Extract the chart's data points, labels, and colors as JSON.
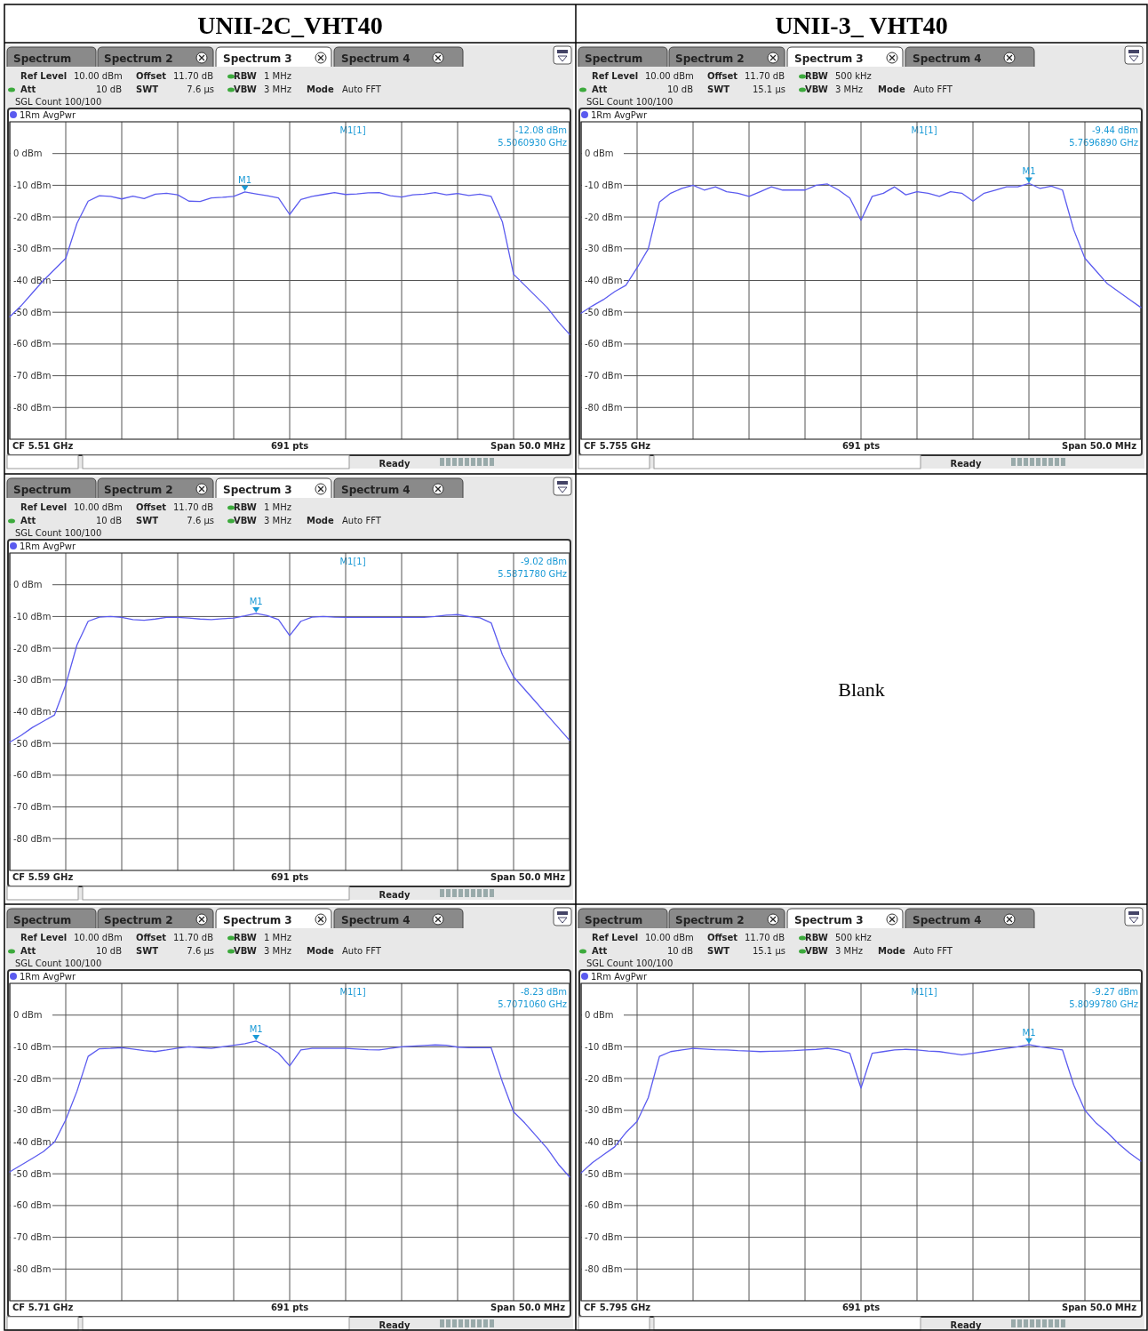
{
  "chart_data": [
    {
      "type": "line",
      "title": "UNII-2C_VHT40",
      "categories": [
        null,
        null,
        null,
        null,
        null,
        null,
        null,
        null,
        null,
        null,
        null,
        null,
        null,
        null,
        null,
        null,
        null,
        null,
        null,
        null,
        null,
        null,
        null,
        null,
        null,
        null,
        null,
        null,
        null,
        null,
        null,
        null,
        null,
        null,
        null,
        null,
        null,
        null,
        null,
        null,
        null,
        null,
        null,
        null,
        null,
        null,
        null,
        null,
        null,
        null,
        null
      ],
      "ylim": [
        -90,
        10
      ],
      "yticks": [
        {
          "value": 0,
          "label": "0 dBm"
        },
        {
          "value": -10,
          "label": "-10 dBm"
        },
        {
          "value": -20,
          "label": "-20 dBm"
        },
        {
          "value": -30,
          "label": "-30 dBm"
        },
        {
          "value": -40,
          "label": "-40 dBm"
        },
        {
          "value": -50,
          "label": "-50 dBm"
        },
        {
          "value": -60,
          "label": "-60 dBm"
        },
        {
          "value": -70,
          "label": "-70 dBm"
        },
        {
          "value": -80,
          "label": "-80 dBm"
        }
      ],
      "grid": true,
      "tick_labels": "y",
      "legend": "top left",
      "series": [
        {
          "name": "1Rm AvgPwr",
          "color": "#5b5bef",
          "values": [
            -51.4,
            -48,
            -44,
            -40,
            -36.5,
            -33,
            -22,
            -15,
            -13.3,
            -13.5,
            -14.3,
            -13.4,
            -14.2,
            -12.8,
            -12.5,
            -13,
            -15,
            -15.1,
            -14,
            -13.8,
            -13.5,
            -12.1,
            -12.7,
            -13.3,
            -14,
            -19.2,
            -14.5,
            -13.5,
            -12.9,
            -12.3,
            -12.9,
            -12.7,
            -12.4,
            -12.3,
            -13.3,
            -13.7,
            -13,
            -12.8,
            -12.3,
            -13,
            -12.6,
            -13.2,
            -12.8,
            -13.5,
            -21.5,
            -38,
            -41.5,
            -45,
            -48.5,
            -53,
            -57
          ]
        }
      ],
      "annotations": [
        "Spectrum",
        "Spectrum 2",
        "Spectrum 3",
        "Spectrum 4",
        "Ref Level",
        "10.00 dBm",
        "Offset",
        "11.70 dB",
        "RBW",
        "1 MHz",
        "Att",
        "10 dB",
        "SWT",
        "7.6 µs",
        "VBW",
        "3 MHz",
        "Mode",
        "Auto FFT",
        "SGL Count 100/100",
        "M1[1]",
        "-12.08 dBm",
        "5.5060930 GHz",
        "CF 5.51 GHz",
        "691 pts",
        "Span 50.0 MHz",
        "Ready",
        {
          "text": "M1",
          "y": -12.08
        }
      ]
    },
    {
      "type": "line",
      "title": "UNII-3_ VHT40",
      "categories": [
        null,
        null,
        null,
        null,
        null,
        null,
        null,
        null,
        null,
        null,
        null,
        null,
        null,
        null,
        null,
        null,
        null,
        null,
        null,
        null,
        null,
        null,
        null,
        null,
        null,
        null,
        null,
        null,
        null,
        null,
        null,
        null,
        null,
        null,
        null,
        null,
        null,
        null,
        null,
        null,
        null,
        null,
        null,
        null,
        null,
        null,
        null,
        null,
        null,
        null,
        null
      ],
      "ylim": [
        -90,
        10
      ],
      "yticks": [
        {
          "value": 0,
          "label": "0 dBm"
        },
        {
          "value": -10,
          "label": "-10 dBm"
        },
        {
          "value": -20,
          "label": "-20 dBm"
        },
        {
          "value": -30,
          "label": "-30 dBm"
        },
        {
          "value": -40,
          "label": "-40 dBm"
        },
        {
          "value": -50,
          "label": "-50 dBm"
        },
        {
          "value": -60,
          "label": "-60 dBm"
        },
        {
          "value": -70,
          "label": "-70 dBm"
        },
        {
          "value": -80,
          "label": "-80 dBm"
        }
      ],
      "grid": true,
      "tick_labels": "y",
      "legend": "top left",
      "series": [
        {
          "name": "1Rm AvgPwr",
          "color": "#5b5bef",
          "values": [
            -50.3,
            -48,
            -46,
            -43.5,
            -41.5,
            -36,
            -30,
            -15.3,
            -12.5,
            -11,
            -10,
            -11.5,
            -10.5,
            -12,
            -12.5,
            -13.5,
            -12,
            -10.5,
            -11.5,
            -11.5,
            -11.5,
            -10,
            -9.6,
            -11.5,
            -14,
            -21,
            -13.5,
            -12.5,
            -10.5,
            -13,
            -12,
            -12.5,
            -13.5,
            -12,
            -12.5,
            -15,
            -12.5,
            -11.5,
            -10.5,
            -10.5,
            -9.4,
            -11,
            -10.3,
            -11.5,
            -24,
            -33,
            -37,
            -41,
            -43.5,
            -46,
            -48.5
          ]
        }
      ],
      "annotations": [
        "Spectrum",
        "Spectrum 2",
        "Spectrum 3",
        "Spectrum 4",
        "Ref Level",
        "10.00 dBm",
        "Offset",
        "11.70 dB",
        "RBW",
        "500 kHz",
        "Att",
        "10 dB",
        "SWT",
        "15.1 µs",
        "VBW",
        "3 MHz",
        "Mode",
        "Auto FFT",
        "SGL Count 100/100",
        "M1[1]",
        "-9.44 dBm",
        "5.7696890 GHz",
        "CF 5.755 GHz",
        "691 pts",
        "Span 50.0 MHz",
        "Ready",
        {
          "text": "M1",
          "y": -9.44
        }
      ]
    },
    {
      "type": "line",
      "categories": [
        null,
        null,
        null,
        null,
        null,
        null,
        null,
        null,
        null,
        null,
        null,
        null,
        null,
        null,
        null,
        null,
        null,
        null,
        null,
        null,
        null,
        null,
        null,
        null,
        null,
        null,
        null,
        null,
        null,
        null,
        null,
        null,
        null,
        null,
        null,
        null,
        null,
        null,
        null,
        null,
        null,
        null,
        null,
        null,
        null,
        null,
        null,
        null,
        null,
        null,
        null
      ],
      "ylim": [
        -90,
        10
      ],
      "yticks": [
        {
          "value": 0,
          "label": "0 dBm"
        },
        {
          "value": -10,
          "label": "-10 dBm"
        },
        {
          "value": -20,
          "label": "-20 dBm"
        },
        {
          "value": -30,
          "label": "-30 dBm"
        },
        {
          "value": -40,
          "label": "-40 dBm"
        },
        {
          "value": -50,
          "label": "-50 dBm"
        },
        {
          "value": -60,
          "label": "-60 dBm"
        },
        {
          "value": -70,
          "label": "-70 dBm"
        },
        {
          "value": -80,
          "label": "-80 dBm"
        }
      ],
      "grid": true,
      "tick_labels": "y",
      "legend": "top left",
      "series": [
        {
          "name": "1Rm AvgPwr",
          "color": "#5b5bef",
          "values": [
            -49.6,
            -47.5,
            -45,
            -43,
            -41,
            -31.5,
            -19,
            -11.5,
            -10.2,
            -10,
            -10.3,
            -11,
            -11.2,
            -10.8,
            -10.3,
            -10.3,
            -10.5,
            -10.8,
            -11,
            -10.7,
            -10.5,
            -9.8,
            -9,
            -9.7,
            -11,
            -16,
            -11.5,
            -10.2,
            -10,
            -10.2,
            -10.3,
            -10.3,
            -10.3,
            -10.3,
            -10.3,
            -10.3,
            -10.3,
            -10.3,
            -10,
            -9.6,
            -9.4,
            -10,
            -10.4,
            -12,
            -22,
            -29,
            -33,
            -37,
            -41,
            -45,
            -49
          ]
        }
      ],
      "annotations": [
        "Spectrum",
        "Spectrum 2",
        "Spectrum 3",
        "Spectrum 4",
        "Ref Level",
        "10.00 dBm",
        "Offset",
        "11.70 dB",
        "RBW",
        "1 MHz",
        "Att",
        "10 dB",
        "SWT",
        "7.6 µs",
        "VBW",
        "3 MHz",
        "Mode",
        "Auto FFT",
        "SGL Count 100/100",
        "M1[1]",
        "-9.02 dBm",
        "5.5871780 GHz",
        "CF 5.59 GHz",
        "691 pts",
        "Span 50.0 MHz",
        "Ready",
        {
          "text": "M1",
          "y": -9.02
        }
      ]
    },
    {
      "type": "other",
      "annotations": [
        "Blank"
      ]
    },
    {
      "type": "line",
      "categories": [
        null,
        null,
        null,
        null,
        null,
        null,
        null,
        null,
        null,
        null,
        null,
        null,
        null,
        null,
        null,
        null,
        null,
        null,
        null,
        null,
        null,
        null,
        null,
        null,
        null,
        null,
        null,
        null,
        null,
        null,
        null,
        null,
        null,
        null,
        null,
        null,
        null,
        null,
        null,
        null,
        null,
        null,
        null,
        null,
        null,
        null,
        null,
        null,
        null,
        null,
        null
      ],
      "ylim": [
        -90,
        10
      ],
      "yticks": [
        {
          "value": 0,
          "label": "0 dBm"
        },
        {
          "value": -10,
          "label": "-10 dBm"
        },
        {
          "value": -20,
          "label": "-20 dBm"
        },
        {
          "value": -30,
          "label": "-30 dBm"
        },
        {
          "value": -40,
          "label": "-40 dBm"
        },
        {
          "value": -50,
          "label": "-50 dBm"
        },
        {
          "value": -60,
          "label": "-60 dBm"
        },
        {
          "value": -70,
          "label": "-70 dBm"
        },
        {
          "value": -80,
          "label": "-80 dBm"
        }
      ],
      "grid": true,
      "tick_labels": "y",
      "legend": "top left",
      "series": [
        {
          "name": "1Rm AvgPwr",
          "color": "#5b5bef",
          "values": [
            -49.4,
            -47.3,
            -45.2,
            -43,
            -40,
            -33,
            -24,
            -13,
            -10.6,
            -10.5,
            -10.3,
            -10.7,
            -11.2,
            -11.5,
            -11,
            -10.4,
            -10,
            -10.3,
            -10.5,
            -10,
            -9.5,
            -9,
            -8.2,
            -9.8,
            -12,
            -16,
            -11,
            -10.5,
            -10.5,
            -10.5,
            -10.5,
            -10.7,
            -10.9,
            -11,
            -10.5,
            -10,
            -9.8,
            -9.6,
            -9.4,
            -9.5,
            -10.1,
            -10.3,
            -10.3,
            -10.3,
            -21,
            -30.5,
            -34,
            -38,
            -42,
            -47,
            -51
          ]
        }
      ],
      "annotations": [
        "Spectrum",
        "Spectrum 2",
        "Spectrum 3",
        "Spectrum 4",
        "Ref Level",
        "10.00 dBm",
        "Offset",
        "11.70 dB",
        "RBW",
        "1 MHz",
        "Att",
        "10 dB",
        "SWT",
        "7.6 µs",
        "VBW",
        "3 MHz",
        "Mode",
        "Auto FFT",
        "SGL Count 100/100",
        "M1[1]",
        "-8.23 dBm",
        "5.7071060 GHz",
        "CF 5.71 GHz",
        "691 pts",
        "Span 50.0 MHz",
        "Ready",
        {
          "text": "M1",
          "y": -8.23
        }
      ]
    },
    {
      "type": "line",
      "categories": [
        null,
        null,
        null,
        null,
        null,
        null,
        null,
        null,
        null,
        null,
        null,
        null,
        null,
        null,
        null,
        null,
        null,
        null,
        null,
        null,
        null,
        null,
        null,
        null,
        null,
        null,
        null,
        null,
        null,
        null,
        null,
        null,
        null,
        null,
        null,
        null,
        null,
        null,
        null,
        null,
        null,
        null,
        null,
        null,
        null,
        null,
        null,
        null,
        null,
        null,
        null
      ],
      "ylim": [
        -90,
        10
      ],
      "yticks": [
        {
          "value": 0,
          "label": "0 dBm"
        },
        {
          "value": -10,
          "label": "-10 dBm"
        },
        {
          "value": -20,
          "label": "-20 dBm"
        },
        {
          "value": -30,
          "label": "-30 dBm"
        },
        {
          "value": -40,
          "label": "-40 dBm"
        },
        {
          "value": -50,
          "label": "-50 dBm"
        },
        {
          "value": -60,
          "label": "-60 dBm"
        },
        {
          "value": -70,
          "label": "-70 dBm"
        },
        {
          "value": -80,
          "label": "-80 dBm"
        }
      ],
      "grid": true,
      "tick_labels": "y",
      "legend": "top left",
      "series": [
        {
          "name": "1Rm AvgPwr",
          "color": "#5b5bef",
          "values": [
            -49.7,
            -46.5,
            -44,
            -41.5,
            -37,
            -33.5,
            -26,
            -13,
            -11.5,
            -11,
            -10.5,
            -10.7,
            -10.9,
            -11,
            -11.2,
            -11.3,
            -11.5,
            -11.4,
            -11.3,
            -11.2,
            -11,
            -10.8,
            -10.5,
            -11,
            -12,
            -23,
            -12,
            -11.5,
            -11,
            -10.8,
            -11,
            -11.3,
            -11.5,
            -12,
            -12.5,
            -12,
            -11.5,
            -11,
            -10.5,
            -10,
            -9.3,
            -10,
            -10.5,
            -11,
            -22,
            -30,
            -34,
            -37,
            -40.5,
            -43.5,
            -46
          ]
        }
      ],
      "annotations": [
        "Spectrum",
        "Spectrum 2",
        "Spectrum 3",
        "Spectrum 4",
        "Ref Level",
        "10.00 dBm",
        "Offset",
        "11.70 dB",
        "RBW",
        "500 kHz",
        "Att",
        "10 dB",
        "SWT",
        "15.1 µs",
        "VBW",
        "3 MHz",
        "Mode",
        "Auto FFT",
        "SGL Count 100/100",
        "M1[1]",
        "-9.27 dBm",
        "5.8099780 GHz",
        "CF 5.795 GHz",
        "691 pts",
        "Span 50.0 MHz",
        "Ready",
        {
          "text": "M1",
          "y": -9.27
        }
      ]
    }
  ]
}
